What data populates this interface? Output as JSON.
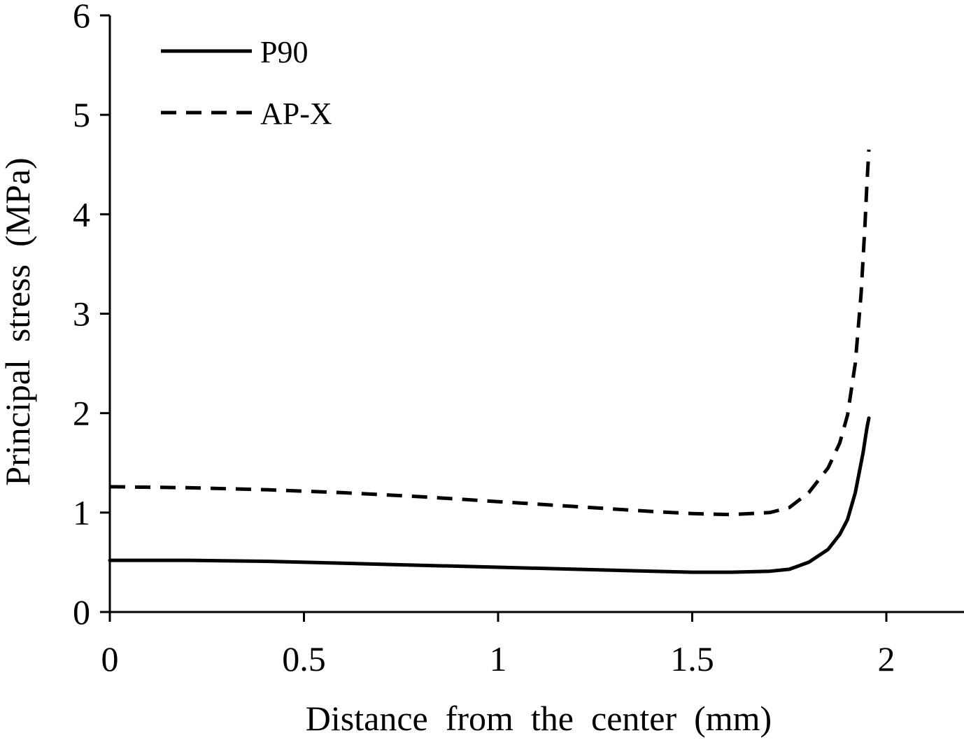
{
  "chart_data": {
    "type": "line",
    "xlabel": "Distance  from  the  center  (mm)",
    "ylabel": "Principal  stress  (MPa)",
    "xlim": [
      0,
      2.2
    ],
    "ylim": [
      0,
      6
    ],
    "x_ticks": [
      0,
      0.5,
      1,
      1.5,
      2
    ],
    "x_tick_labels": [
      "0",
      "0.5",
      "1",
      "1.5",
      "2"
    ],
    "y_ticks": [
      0,
      1,
      2,
      3,
      4,
      5,
      6
    ],
    "y_tick_labels": [
      "0",
      "1",
      "2",
      "3",
      "4",
      "5",
      "6"
    ],
    "grid": false,
    "legend_position": "top-left",
    "series": [
      {
        "name": "P90",
        "style": "solid",
        "color": "#000000",
        "x": [
          0,
          0.2,
          0.4,
          0.6,
          0.8,
          1.0,
          1.2,
          1.4,
          1.5,
          1.6,
          1.7,
          1.75,
          1.8,
          1.85,
          1.88,
          1.9,
          1.92,
          1.94,
          1.95,
          1.955
        ],
        "y": [
          0.52,
          0.52,
          0.51,
          0.49,
          0.47,
          0.45,
          0.43,
          0.41,
          0.4,
          0.4,
          0.41,
          0.43,
          0.5,
          0.63,
          0.78,
          0.93,
          1.2,
          1.6,
          1.85,
          1.95
        ]
      },
      {
        "name": "AP-X",
        "style": "dashed",
        "color": "#000000",
        "x": [
          0,
          0.2,
          0.4,
          0.6,
          0.8,
          1.0,
          1.2,
          1.4,
          1.5,
          1.6,
          1.7,
          1.75,
          1.8,
          1.85,
          1.88,
          1.9,
          1.92,
          1.935,
          1.945,
          1.95,
          1.955
        ],
        "y": [
          1.26,
          1.25,
          1.23,
          1.2,
          1.16,
          1.11,
          1.06,
          1.01,
          0.99,
          0.98,
          1.0,
          1.05,
          1.2,
          1.45,
          1.7,
          1.98,
          2.5,
          3.2,
          3.9,
          4.3,
          4.65
        ]
      }
    ]
  }
}
